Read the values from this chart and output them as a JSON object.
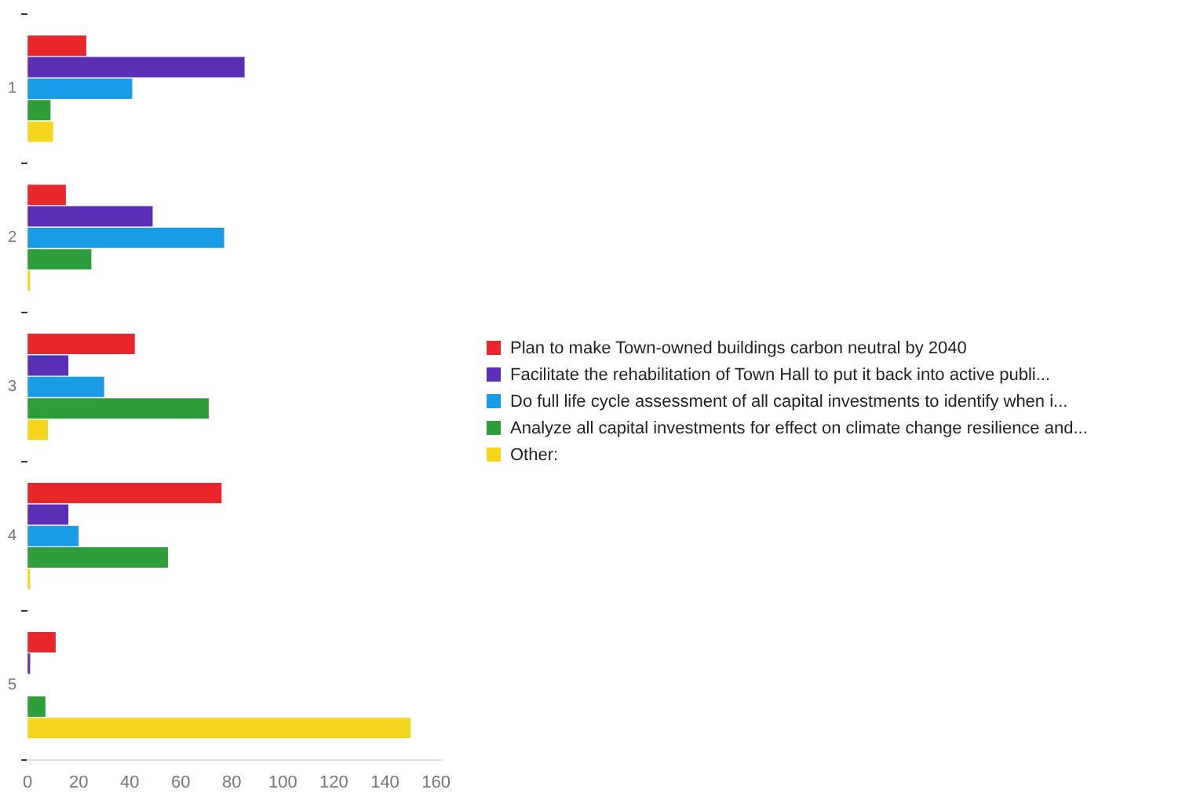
{
  "chart_data": {
    "type": "bar",
    "orientation": "horizontal",
    "categories": [
      "1",
      "2",
      "3",
      "4",
      "5"
    ],
    "series": [
      {
        "name": "Plan to make Town-owned buildings carbon neutral by 2040",
        "color": "#e8262b",
        "values": [
          23,
          15,
          42,
          76,
          11
        ]
      },
      {
        "name": "Facilitate the rehabilitation of Town Hall to put it back into active publi...",
        "color": "#5b2fb5",
        "values": [
          85,
          49,
          16,
          16,
          1
        ]
      },
      {
        "name": "Do full life cycle assessment of all capital investments to identify when i...",
        "color": "#1a9be6",
        "values": [
          41,
          77,
          30,
          20,
          0
        ]
      },
      {
        "name": "Analyze all capital investments for effect on climate change resilience and...",
        "color": "#2e9e3a",
        "values": [
          9,
          25,
          71,
          55,
          7
        ]
      },
      {
        "name": "Other:",
        "color": "#f5d51d",
        "values": [
          10,
          1,
          8,
          1,
          150
        ]
      }
    ],
    "xlim": [
      0,
      162
    ],
    "xticks": [
      0,
      20,
      40,
      60,
      80,
      100,
      120,
      140,
      160
    ],
    "grid": false,
    "legend": "right"
  }
}
